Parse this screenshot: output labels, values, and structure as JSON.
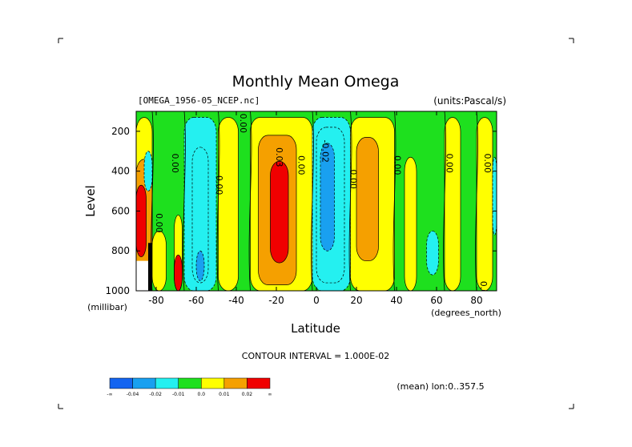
{
  "chart_data": {
    "type": "heatmap",
    "title": "Monthly Mean Omega",
    "subtitle_left": "[OMEGA_1956-05_NCEP.nc]",
    "subtitle_right": "(units:Pascal/s)",
    "xlabel": "Latitude",
    "ylabel": "Level",
    "x_unit_label": "(degrees_north)",
    "y_unit_label": "(millibar)",
    "x_ticks": [
      "-80",
      "-60",
      "-40",
      "-20",
      "0",
      "20",
      "40",
      "60",
      "80"
    ],
    "x_tick_values": [
      -80,
      -60,
      -40,
      -20,
      0,
      20,
      40,
      60,
      80
    ],
    "y_ticks": [
      "200",
      "400",
      "600",
      "800",
      "1000"
    ],
    "y_tick_values": [
      200,
      400,
      600,
      800,
      1000
    ],
    "xlim": [
      -90,
      90
    ],
    "ylim": [
      1000,
      100
    ],
    "contour_interval_text": "CONTOUR INTERVAL = 1.000E-02",
    "mean_note": "(mean) lon:0..357.5",
    "colorbar": {
      "colors": [
        "#1464f0",
        "#19a0f0",
        "#24f0f0",
        "#1ee01e",
        "#ffff00",
        "#f5a000",
        "#f00000"
      ],
      "labels": [
        "-∞",
        "-0.04",
        "-0.02",
        "-0.01",
        "0.0",
        "0.01",
        "0.02",
        "∞"
      ]
    },
    "contour_labels": [
      {
        "text": "0.00",
        "lat": -72,
        "p": 360
      },
      {
        "text": "0.00",
        "lat": -50,
        "p": 470
      },
      {
        "text": "0.00",
        "lat": -38,
        "p": 160
      },
      {
        "text": "0.03",
        "lat": -20,
        "p": 330
      },
      {
        "text": "0.00",
        "lat": -9,
        "p": 370
      },
      {
        "text": "-0.02",
        "lat": 3,
        "p": 300
      },
      {
        "text": "0.00",
        "lat": 17,
        "p": 440
      },
      {
        "text": "0.00",
        "lat": 39,
        "p": 370
      },
      {
        "text": "0.00",
        "lat": 65,
        "p": 360
      },
      {
        "text": "0.00",
        "lat": 84,
        "p": 360
      },
      {
        "text": "0.00",
        "lat": -80,
        "p": 660
      },
      {
        "text": "0.00",
        "lat": 82,
        "p": 1000
      }
    ],
    "regions": [
      {
        "level": 0.005,
        "lat_min": -90,
        "lat_max": -82,
        "p_top": 130,
        "p_bottom": 1000
      },
      {
        "level": 0.015,
        "lat_min": -90,
        "lat_max": -82,
        "p_top": 340,
        "p_bottom": 1000
      },
      {
        "level": 0.025,
        "lat_min": -90,
        "lat_max": -85,
        "p_top": 470,
        "p_bottom": 830
      },
      {
        "level": 0.005,
        "lat_min": -82,
        "lat_max": -75,
        "p_top": 700,
        "p_bottom": 1000
      },
      {
        "level": -0.005,
        "lat_min": -86,
        "lat_max": -82,
        "p_top": 300,
        "p_bottom": 500
      },
      {
        "level": 0.005,
        "lat_min": -71,
        "lat_max": -67,
        "p_top": 620,
        "p_bottom": 1000
      },
      {
        "level": 0.025,
        "lat_min": -71,
        "lat_max": -67,
        "p_top": 820,
        "p_bottom": 1000
      },
      {
        "level": -0.005,
        "lat_min": -66,
        "lat_max": -50,
        "p_top": 130,
        "p_bottom": 1000
      },
      {
        "level": -0.015,
        "lat_min": -62,
        "lat_max": -54,
        "p_top": 280,
        "p_bottom": 960
      },
      {
        "level": -0.025,
        "lat_min": -60,
        "lat_max": -56,
        "p_top": 800,
        "p_bottom": 950
      },
      {
        "level": 0.005,
        "lat_min": -49,
        "lat_max": -39,
        "p_top": 130,
        "p_bottom": 1000
      },
      {
        "level": 0.005,
        "lat_min": -33,
        "lat_max": -2,
        "p_top": 130,
        "p_bottom": 1000
      },
      {
        "level": 0.015,
        "lat_min": -29,
        "lat_max": -10,
        "p_top": 220,
        "p_bottom": 970
      },
      {
        "level": 0.025,
        "lat_min": -23,
        "lat_max": -14,
        "p_top": 350,
        "p_bottom": 860
      },
      {
        "level": -0.005,
        "lat_min": -2,
        "lat_max": 17,
        "p_top": 130,
        "p_bottom": 1000
      },
      {
        "level": -0.015,
        "lat_min": 0,
        "lat_max": 14,
        "p_top": 180,
        "p_bottom": 960
      },
      {
        "level": -0.025,
        "lat_min": 2,
        "lat_max": 9,
        "p_top": 260,
        "p_bottom": 800
      },
      {
        "level": 0.005,
        "lat_min": 17,
        "lat_max": 39,
        "p_top": 130,
        "p_bottom": 1000
      },
      {
        "level": 0.015,
        "lat_min": 20,
        "lat_max": 31,
        "p_top": 230,
        "p_bottom": 850
      },
      {
        "level": 0.005,
        "lat_min": 44,
        "lat_max": 50,
        "p_top": 330,
        "p_bottom": 1000
      },
      {
        "level": -0.005,
        "lat_min": 55,
        "lat_max": 61,
        "p_top": 700,
        "p_bottom": 920
      },
      {
        "level": 0.005,
        "lat_min": 64,
        "lat_max": 72,
        "p_top": 130,
        "p_bottom": 1000
      },
      {
        "level": 0.005,
        "lat_min": 80,
        "lat_max": 88,
        "p_top": 130,
        "p_bottom": 1000
      },
      {
        "level": -0.005,
        "lat_min": 88,
        "lat_max": 90,
        "p_top": 330,
        "p_bottom": 720
      }
    ],
    "contour_lines": [
      {
        "lat": -82,
        "level": 0.0
      },
      {
        "lat": -66,
        "level": 0.0
      },
      {
        "lat": -49,
        "level": 0.0
      },
      {
        "lat": -33,
        "level": 0.0
      },
      {
        "lat": -2,
        "level": 0.0
      },
      {
        "lat": 17,
        "level": 0.0
      },
      {
        "lat": 39,
        "level": 0.0
      },
      {
        "lat": 64,
        "level": 0.0
      },
      {
        "lat": 80,
        "level": 0.0
      }
    ],
    "missing": [
      {
        "lat_min": -90,
        "lat_max": -84,
        "p_top": 850,
        "p_bottom": 1000
      },
      {
        "lat_min": -84,
        "lat_max": -82,
        "p_top": 760,
        "p_bottom": 1000
      }
    ]
  }
}
